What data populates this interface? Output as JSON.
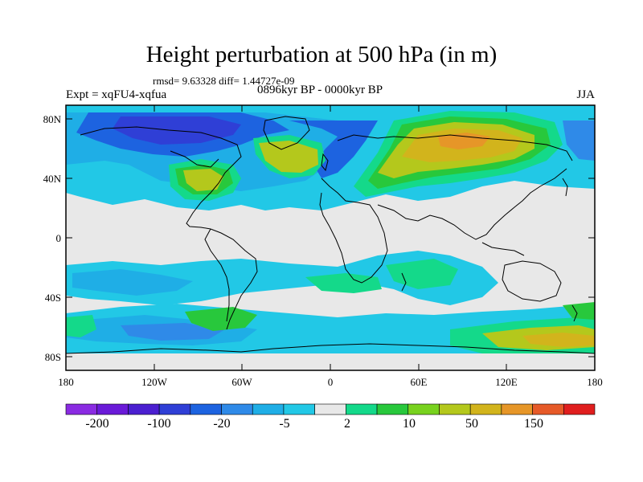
{
  "title": "Height perturbation at 500 hPa (in m)",
  "stats": "rmsd= 9.63328 diff= 1.44727e-09",
  "experiment": "Expt = xqFU4-xqfua",
  "period": "0896kyr BP - 0000kyr BP",
  "season": "JJA",
  "axes": {
    "x_ticks": [
      "180",
      "120W",
      "60W",
      "0",
      "60E",
      "120E",
      "180"
    ],
    "y_ticks": [
      "80N",
      "40N",
      "0",
      "40S",
      "80S"
    ]
  },
  "colorbar": {
    "labels": [
      "-200",
      "-100",
      "-20",
      "-5",
      "2",
      "10",
      "50",
      "150"
    ],
    "colors": [
      "#8a2be2",
      "#6a1ad8",
      "#4b1fd0",
      "#2f3fd6",
      "#1d63e0",
      "#2f8ae8",
      "#1faee6",
      "#22c8e6",
      "#e8e8e8",
      "#14d98a",
      "#28c83c",
      "#78d21e",
      "#b4c81c",
      "#d2b41c",
      "#e69628",
      "#e65a28",
      "#e01e1e"
    ]
  },
  "palette": {
    "neutral": "#e8e8e8",
    "light_blue": "#22c8e6",
    "sky_blue": "#1faee6",
    "mid_blue": "#2f8ae8",
    "blue": "#1d63e0",
    "deep_blue": "#2f3fd6",
    "teal_green": "#14d98a",
    "green": "#28c83c",
    "yellow_green": "#b4c81c",
    "ochre": "#d2b41c",
    "orange": "#e69628"
  }
}
